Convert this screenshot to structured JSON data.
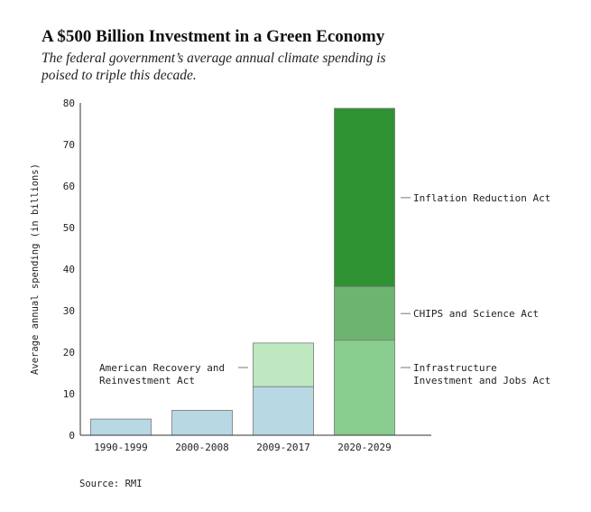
{
  "title": "A $500 Billion Investment in a Green Economy",
  "subtitle": "The federal government’s average annual climate spending is poised to triple this decade.",
  "source": "Source: RMI",
  "chart_data": {
    "type": "bar",
    "stacked": true,
    "title": "A $500 Billion Investment in a Green Economy",
    "subtitle": "The federal government’s average annual climate spending is poised to triple this decade.",
    "xlabel": "",
    "ylabel": "Average annual spending (in billions)",
    "ylim": [
      0,
      80
    ],
    "yticks": [
      0,
      10,
      20,
      30,
      40,
      50,
      60,
      70,
      80
    ],
    "categories": [
      "1990-1999",
      "2000-2008",
      "2009-2017",
      "2020-2029"
    ],
    "segments": [
      {
        "category": "1990-1999",
        "bottom": 0,
        "top": 3.9,
        "color": "#b8d8e4"
      },
      {
        "category": "2000-2008",
        "bottom": 0,
        "top": 6.0,
        "color": "#b8d8e4"
      },
      {
        "category": "2009-2017",
        "bottom": 0,
        "top": 11.7,
        "color": "#b8d8e4"
      },
      {
        "category": "2009-2017",
        "bottom": 11.7,
        "top": 22.2,
        "color": "#bde8c0"
      },
      {
        "category": "2020-2029",
        "bottom": 0,
        "top": 22.9,
        "color": "#88cd8e"
      },
      {
        "category": "2020-2029",
        "bottom": 22.9,
        "top": 35.8,
        "color": "#6db56f"
      },
      {
        "category": "2020-2029",
        "bottom": 35.8,
        "top": 78.7,
        "color": "#2f9232"
      }
    ],
    "annotations": [
      {
        "lines": [
          "Inflation Reduction Act"
        ],
        "value": 57.2,
        "side": "right"
      },
      {
        "lines": [
          "CHIPS and Science Act"
        ],
        "value": 29.3,
        "side": "right"
      },
      {
        "lines": [
          "Infrastructure",
          "Investment and Jobs Act"
        ],
        "value": 16.3,
        "side": "right"
      },
      {
        "lines": [
          "American Recovery and",
          "Reinvestment Act"
        ],
        "value": 16.3,
        "side": "left"
      }
    ]
  }
}
